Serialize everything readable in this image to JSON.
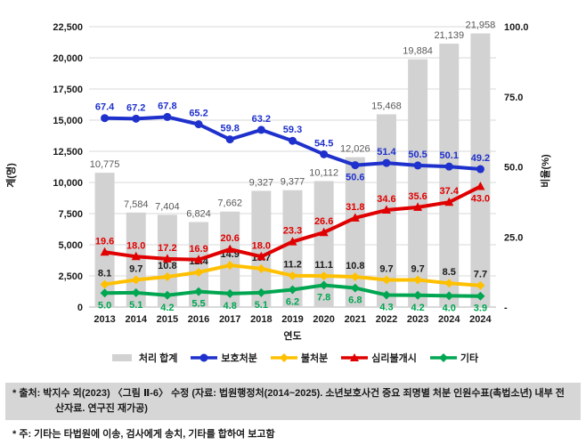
{
  "chart_data": {
    "type": "bar+line-combo",
    "categories": [
      "2013",
      "2014",
      "2015",
      "2016",
      "2017",
      "2018",
      "2019",
      "2020",
      "2021",
      "2022",
      "2023",
      "2024",
      "2024"
    ],
    "x_axis_title": "연도",
    "left_axis": {
      "title": "계(명)",
      "min": 0,
      "max": 22500,
      "step": 2500,
      "tick_labels": [
        "0",
        "2,500",
        "5,000",
        "7,500",
        "10,000",
        "12,500",
        "15,000",
        "17,500",
        "20,000",
        "22,500"
      ]
    },
    "right_axis": {
      "title": "비율(%)",
      "min": 0,
      "max": 100,
      "step": 25,
      "tick_labels": [
        "-",
        "25.0",
        "50.0",
        "75.0",
        "100.0"
      ]
    },
    "bars": {
      "name": "처리 합계",
      "color": "#d2d2d2",
      "label_color": "#595959",
      "values": [
        10775,
        7584,
        7404,
        6824,
        7662,
        9327,
        9377,
        10112,
        12026,
        15468,
        19884,
        21139,
        21958
      ],
      "labels": [
        "10,775",
        "7,584",
        "7,404",
        "6,824",
        "7,662",
        "9,327",
        "9,377",
        "10,112",
        "12,026",
        "15,468",
        "19,884",
        "21,139",
        "21,958"
      ]
    },
    "lines": [
      {
        "name": "불처분",
        "color": "#ffc000",
        "label_color": "#1a1a1a",
        "marker": "diamond",
        "label_position": "above",
        "label_exceptions": {},
        "values": [
          8.1,
          9.7,
          10.8,
          12.4,
          14.9,
          13.7,
          11.2,
          11.1,
          10.8,
          9.7,
          9.7,
          8.5,
          7.7
        ],
        "labels": [
          "8.1",
          "9.7",
          "10.8",
          "12.4",
          "14.9",
          "13.7",
          "11.2",
          "11.1",
          "10.8",
          "9.7",
          "9.7",
          "8.5",
          "7.7"
        ]
      },
      {
        "name": "기타",
        "color": "#00a651",
        "label_color": "#00a651",
        "marker": "diamond",
        "label_position": "below",
        "label_exceptions": {},
        "values": [
          5.0,
          5.1,
          4.2,
          5.5,
          4.8,
          5.1,
          6.2,
          7.8,
          6.8,
          4.3,
          4.2,
          4.0,
          3.9
        ],
        "labels": [
          "5.0",
          "5.1",
          "4.2",
          "5.5",
          "4.8",
          "5.1",
          "6.2",
          "7.8",
          "6.8",
          "4.3",
          "4.2",
          "4.0",
          "3.9"
        ]
      },
      {
        "name": "심리불개시",
        "color": "#e00000",
        "label_color": "#e00000",
        "marker": "triangle",
        "label_position": "above",
        "label_exceptions": {
          "12": "below"
        },
        "values": [
          19.6,
          18.0,
          17.2,
          16.9,
          20.6,
          18.0,
          23.3,
          26.6,
          31.8,
          34.6,
          35.6,
          37.4,
          43.0
        ],
        "labels": [
          "19.6",
          "18.0",
          "17.2",
          "16.9",
          "20.6",
          "18.0",
          "23.3",
          "26.6",
          "31.8",
          "34.6",
          "35.6",
          "37.4",
          "43.0"
        ]
      },
      {
        "name": "보호처분",
        "color": "#1f31cc",
        "label_color": "#1f31cc",
        "marker": "circle",
        "label_position": "above",
        "label_exceptions": {
          "8": "below"
        },
        "values": [
          67.4,
          67.2,
          67.8,
          65.2,
          59.8,
          63.2,
          59.3,
          54.5,
          50.6,
          51.4,
          50.5,
          50.1,
          49.2
        ],
        "labels": [
          "67.4",
          "67.2",
          "67.8",
          "65.2",
          "59.8",
          "63.2",
          "59.3",
          "54.5",
          "50.6",
          "51.4",
          "50.5",
          "50.1",
          "49.2"
        ]
      }
    ],
    "legend": [
      {
        "label": "처리 합계",
        "type": "bar",
        "color": "#d2d2d2"
      },
      {
        "label": "보호처분",
        "type": "line",
        "marker": "circle",
        "color": "#1f31cc"
      },
      {
        "label": "불처분",
        "type": "line",
        "marker": "diamond",
        "color": "#ffc000"
      },
      {
        "label": "심리불개시",
        "type": "line",
        "marker": "triangle",
        "color": "#e00000"
      },
      {
        "label": "기타",
        "type": "line",
        "marker": "diamond",
        "color": "#00a651"
      }
    ]
  },
  "notes": [
    {
      "text": "* 출처: 박지수 외(2023) 〈그림 Ⅱ-6〉 수정 (자료: 법원행정처(2014~2025). 소년보호사건 중요 죄명별 처분 인원수표(촉법소년) 내부 전산자료. 연구진 재가공)",
      "highlight": true
    },
    {
      "text": "* 주: 기타는 타법원에 이송, 검사에게 송치, 기타를 합하여 보고함",
      "highlight": false
    }
  ]
}
